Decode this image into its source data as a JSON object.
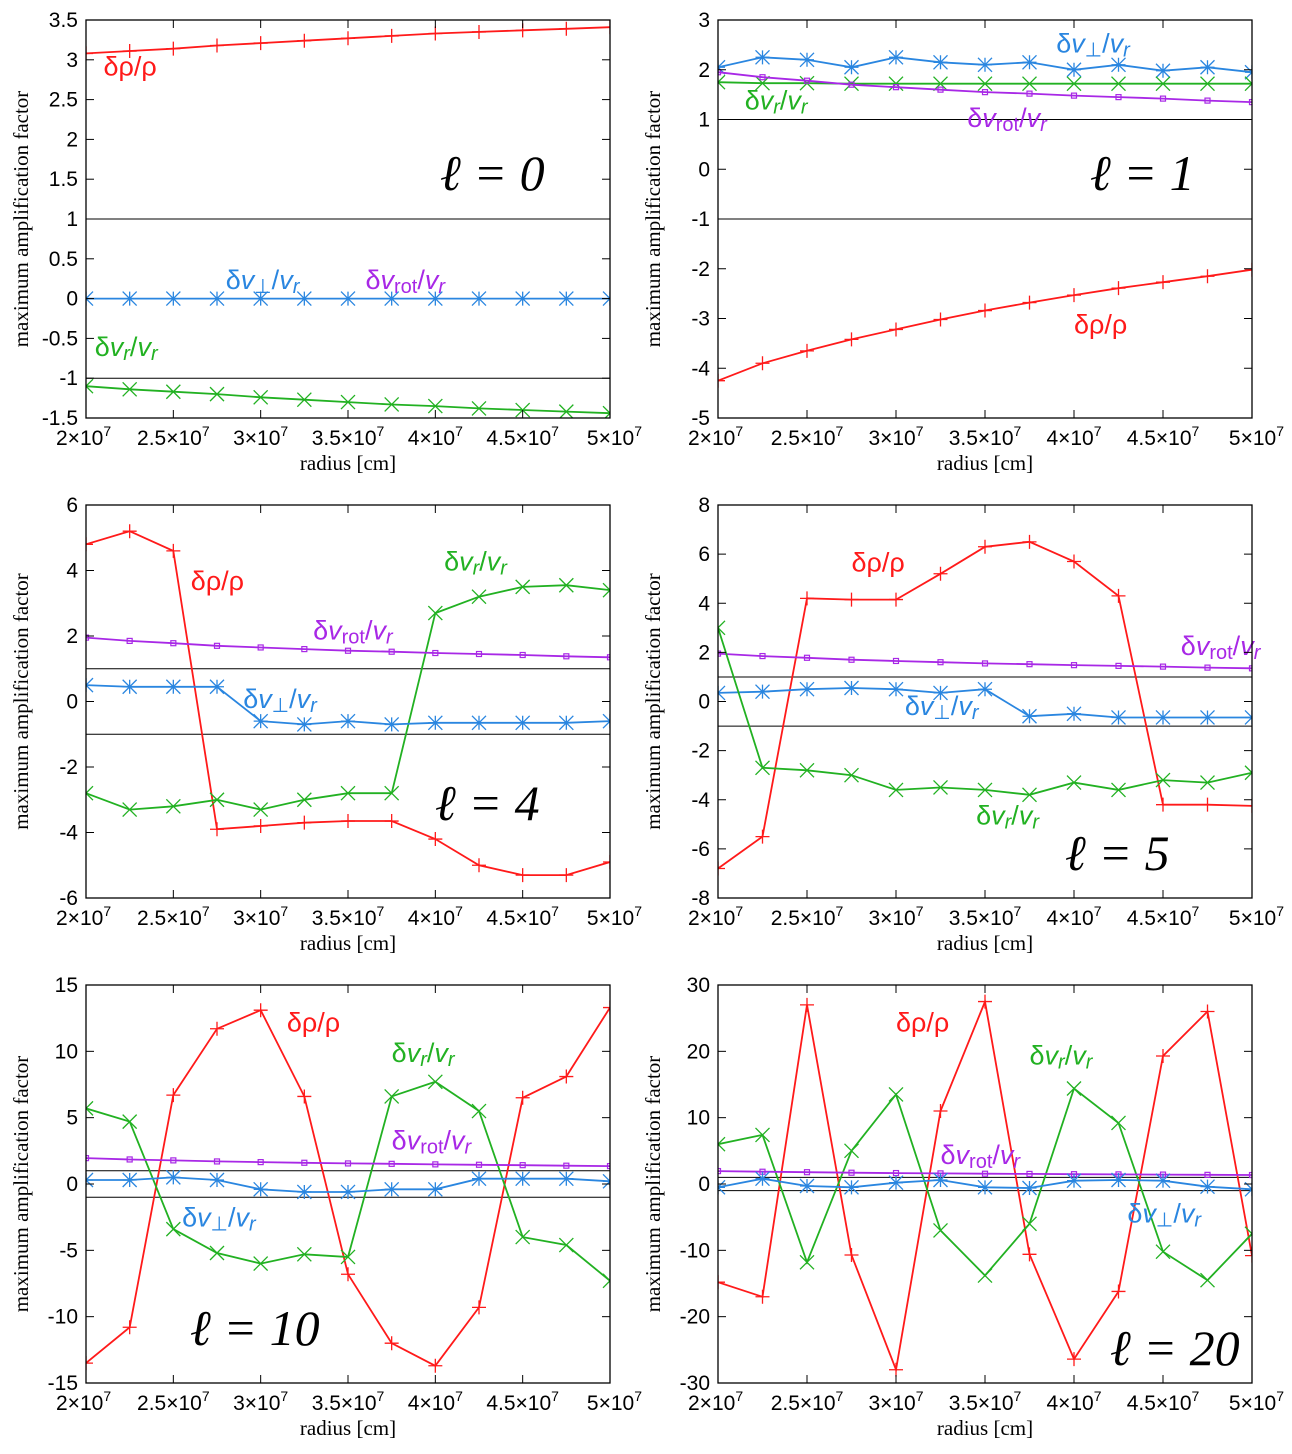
{
  "colors": {
    "drho": "#ff1a1a",
    "dvr": "#22b122",
    "dvperp": "#2a86e0",
    "dvrot": "#a828e6",
    "ref": "#000000"
  },
  "chart_data": [
    {
      "type": "line",
      "ell_label": "ℓ = 0",
      "xlabel": "radius [cm]",
      "ylabel": "maximum amplification factor",
      "xlim": [
        20000000.0,
        50000000.0
      ],
      "ylim": [
        -1.5,
        3.5
      ],
      "xticks": [
        20000000.0,
        25000000.0,
        30000000.0,
        35000000.0,
        40000000.0,
        45000000.0,
        50000000.0
      ],
      "xtick_labels": [
        "2×10",
        "2.5×10",
        "3×10",
        "3.5×10",
        "4×10",
        "4.5×10",
        "5×10"
      ],
      "xtick_exp": "7",
      "yticks": [
        -1.5,
        -1,
        -0.5,
        0,
        0.5,
        1,
        1.5,
        2,
        2.5,
        3,
        3.5
      ],
      "ytick_labels": [
        "-1.5",
        "-1",
        "-0.5",
        "0",
        "0.5",
        "1",
        "1.5",
        "2",
        "2.5",
        "3",
        "3.5"
      ],
      "reference_lines": [
        1,
        -1
      ],
      "x": [
        20000000.0,
        22500000.0,
        25000000.0,
        27500000.0,
        30000000.0,
        32500000.0,
        35000000.0,
        37500000.0,
        40000000.0,
        42500000.0,
        45000000.0,
        47500000.0,
        50000000.0
      ],
      "series": [
        {
          "name": "δρ/ρ",
          "marker": "plus",
          "label_pos": [
            21000000.0,
            2.8
          ],
          "values": [
            3.08,
            3.11,
            3.14,
            3.18,
            3.21,
            3.24,
            3.27,
            3.3,
            3.33,
            3.35,
            3.37,
            3.39,
            3.41
          ]
        },
        {
          "name": "δv_⊥/v_r",
          "marker": "star",
          "label_pos": [
            28000000.0,
            0.12
          ],
          "values": [
            0,
            0,
            0,
            0,
            0,
            0,
            0,
            0,
            0,
            0,
            0,
            0,
            0
          ]
        },
        {
          "name": "δv_rot/v_r",
          "marker": "square",
          "label_pos": [
            36000000.0,
            0.12
          ],
          "draw": false,
          "values": [
            0,
            0,
            0,
            0,
            0,
            0,
            0,
            0,
            0,
            0,
            0,
            0,
            0
          ]
        },
        {
          "name": "δv_r/v_r",
          "marker": "cross",
          "label_pos": [
            20500000.0,
            -0.72
          ],
          "values": [
            -1.1,
            -1.14,
            -1.17,
            -1.2,
            -1.24,
            -1.27,
            -1.3,
            -1.33,
            -1.35,
            -1.38,
            -1.4,
            -1.42,
            -1.44
          ]
        }
      ]
    },
    {
      "type": "line",
      "ell_label": "ℓ = 1",
      "xlabel": "radius [cm]",
      "ylabel": "maximum amplification factor",
      "xlim": [
        20000000.0,
        50000000.0
      ],
      "ylim": [
        -5,
        3
      ],
      "xticks": [
        20000000.0,
        25000000.0,
        30000000.0,
        35000000.0,
        40000000.0,
        45000000.0,
        50000000.0
      ],
      "xtick_labels": [
        "2×10",
        "2.5×10",
        "3×10",
        "3.5×10",
        "4×10",
        "4.5×10",
        "5×10"
      ],
      "xtick_exp": "7",
      "yticks": [
        -5,
        -4,
        -3,
        -2,
        -1,
        0,
        1,
        2,
        3
      ],
      "ytick_labels": [
        "-5",
        "-4",
        "-3",
        "-2",
        "-1",
        "0",
        "1",
        "2",
        "3"
      ],
      "reference_lines": [
        1,
        -1
      ],
      "x": [
        20000000.0,
        22500000.0,
        25000000.0,
        27500000.0,
        30000000.0,
        32500000.0,
        35000000.0,
        37500000.0,
        40000000.0,
        42500000.0,
        45000000.0,
        47500000.0,
        50000000.0
      ],
      "series": [
        {
          "name": "δv_⊥/v_r",
          "marker": "star",
          "label_pos": [
            39000000.0,
            2.35
          ],
          "values": [
            2.05,
            2.25,
            2.2,
            2.05,
            2.25,
            2.15,
            2.1,
            2.15,
            2.0,
            2.1,
            1.98,
            2.05,
            1.95
          ]
        },
        {
          "name": "δv_r/v_r",
          "marker": "cross",
          "label_pos": [
            21500000.0,
            1.2
          ],
          "values": [
            1.75,
            1.73,
            1.73,
            1.72,
            1.72,
            1.72,
            1.72,
            1.72,
            1.72,
            1.72,
            1.72,
            1.72,
            1.72
          ]
        },
        {
          "name": "δv_rot/v_r",
          "marker": "square",
          "label_pos": [
            34000000.0,
            0.85
          ],
          "values": [
            1.95,
            1.85,
            1.78,
            1.7,
            1.65,
            1.6,
            1.55,
            1.52,
            1.48,
            1.45,
            1.42,
            1.38,
            1.35
          ]
        },
        {
          "name": "δρ/ρ",
          "marker": "plus",
          "label_pos": [
            40000000.0,
            -3.3
          ],
          "values": [
            -4.25,
            -3.9,
            -3.65,
            -3.42,
            -3.22,
            -3.02,
            -2.84,
            -2.68,
            -2.53,
            -2.39,
            -2.27,
            -2.15,
            -2.02
          ]
        }
      ]
    },
    {
      "type": "line",
      "ell_label": "ℓ = 4",
      "xlabel": "radius [cm]",
      "ylabel": "maximum amplification factor",
      "xlim": [
        20000000.0,
        50000000.0
      ],
      "ylim": [
        -6,
        6
      ],
      "xticks": [
        20000000.0,
        25000000.0,
        30000000.0,
        35000000.0,
        40000000.0,
        45000000.0,
        50000000.0
      ],
      "xtick_labels": [
        "2×10",
        "2.5×10",
        "3×10",
        "3.5×10",
        "4×10",
        "4.5×10",
        "5×10"
      ],
      "xtick_exp": "7",
      "yticks": [
        -6,
        -4,
        -2,
        0,
        2,
        4,
        6
      ],
      "ytick_labels": [
        "-6",
        "-4",
        "-2",
        "0",
        "2",
        "4",
        "6"
      ],
      "reference_lines": [
        1,
        -1
      ],
      "x": [
        20000000.0,
        22500000.0,
        25000000.0,
        27500000.0,
        30000000.0,
        32500000.0,
        35000000.0,
        37500000.0,
        40000000.0,
        42500000.0,
        45000000.0,
        47500000.0,
        50000000.0
      ],
      "series": [
        {
          "name": "δρ/ρ",
          "marker": "plus",
          "label_pos": [
            26000000.0,
            3.4
          ],
          "values": [
            4.8,
            5.2,
            4.6,
            -3.9,
            -3.8,
            -3.7,
            -3.65,
            -3.65,
            -4.2,
            -5.0,
            -5.3,
            -5.3,
            -4.9
          ]
        },
        {
          "name": "δv_r/v_r",
          "marker": "cross",
          "label_pos": [
            40500000.0,
            4.0
          ],
          "values": [
            -2.8,
            -3.3,
            -3.2,
            -3.0,
            -3.3,
            -3.0,
            -2.8,
            -2.8,
            2.7,
            3.2,
            3.5,
            3.55,
            3.4
          ]
        },
        {
          "name": "δv_rot/v_r",
          "marker": "square",
          "label_pos": [
            33000000.0,
            1.9
          ],
          "values": [
            1.95,
            1.85,
            1.78,
            1.7,
            1.65,
            1.6,
            1.55,
            1.52,
            1.48,
            1.45,
            1.42,
            1.38,
            1.35
          ]
        },
        {
          "name": "δv_⊥/v_r",
          "marker": "star",
          "label_pos": [
            29000000.0,
            -0.2
          ],
          "values": [
            0.5,
            0.45,
            0.45,
            0.45,
            -0.6,
            -0.7,
            -0.6,
            -0.7,
            -0.65,
            -0.65,
            -0.65,
            -0.65,
            -0.6
          ]
        }
      ]
    },
    {
      "type": "line",
      "ell_label": "ℓ = 5",
      "xlabel": "radius [cm]",
      "ylabel": "maximum amplification factor",
      "xlim": [
        20000000.0,
        50000000.0
      ],
      "ylim": [
        -8,
        8
      ],
      "xticks": [
        20000000.0,
        25000000.0,
        30000000.0,
        35000000.0,
        40000000.0,
        45000000.0,
        50000000.0
      ],
      "xtick_labels": [
        "2×10",
        "2.5×10",
        "3×10",
        "3.5×10",
        "4×10",
        "4.5×10",
        "5×10"
      ],
      "xtick_exp": "7",
      "yticks": [
        -8,
        -6,
        -4,
        -2,
        0,
        2,
        4,
        6,
        8
      ],
      "ytick_labels": [
        "-8",
        "-6",
        "-4",
        "-2",
        "0",
        "2",
        "4",
        "6",
        "8"
      ],
      "reference_lines": [
        1,
        -1
      ],
      "x": [
        20000000.0,
        22500000.0,
        25000000.0,
        27500000.0,
        30000000.0,
        32500000.0,
        35000000.0,
        37500000.0,
        40000000.0,
        42500000.0,
        45000000.0,
        47500000.0,
        50000000.0
      ],
      "series": [
        {
          "name": "δρ/ρ",
          "marker": "plus",
          "label_pos": [
            27500000.0,
            5.3
          ],
          "values": [
            -6.8,
            -5.5,
            4.2,
            4.15,
            4.15,
            5.2,
            6.3,
            6.5,
            5.7,
            4.3,
            -4.2,
            -4.2,
            -4.25
          ]
        },
        {
          "name": "δv_rot/v_r",
          "marker": "square",
          "label_pos": [
            46000000.0,
            1.9
          ],
          "values": [
            1.95,
            1.85,
            1.78,
            1.7,
            1.65,
            1.6,
            1.55,
            1.52,
            1.48,
            1.45,
            1.42,
            1.38,
            1.35
          ]
        },
        {
          "name": "δv_⊥/v_r",
          "marker": "star",
          "label_pos": [
            30500000.0,
            -0.55
          ],
          "values": [
            0.35,
            0.4,
            0.5,
            0.55,
            0.5,
            0.35,
            0.5,
            -0.6,
            -0.5,
            -0.65,
            -0.65,
            -0.65,
            -0.65
          ]
        },
        {
          "name": "δv_r/v_r",
          "marker": "cross",
          "label_pos": [
            34500000.0,
            -5.0
          ],
          "values": [
            3.0,
            -2.7,
            -2.8,
            -3.0,
            -3.6,
            -3.5,
            -3.6,
            -3.8,
            -3.3,
            -3.6,
            -3.2,
            -3.3,
            -2.9
          ]
        }
      ]
    },
    {
      "type": "line",
      "ell_label": "ℓ = 10",
      "xlabel": "radius [cm]",
      "ylabel": "maximum amplification factor",
      "xlim": [
        20000000.0,
        50000000.0
      ],
      "ylim": [
        -15,
        15
      ],
      "xticks": [
        20000000.0,
        25000000.0,
        30000000.0,
        35000000.0,
        40000000.0,
        45000000.0,
        50000000.0
      ],
      "xtick_labels": [
        "2×10",
        "2.5×10",
        "3×10",
        "3.5×10",
        "4×10",
        "4.5×10",
        "5×10"
      ],
      "xtick_exp": "7",
      "yticks": [
        -15,
        -10,
        -5,
        0,
        5,
        10,
        15
      ],
      "ytick_labels": [
        "-15",
        "-10",
        "-5",
        "0",
        "5",
        "10",
        "15"
      ],
      "reference_lines": [
        1,
        -1
      ],
      "x": [
        20000000.0,
        22500000.0,
        25000000.0,
        27500000.0,
        30000000.0,
        32500000.0,
        35000000.0,
        37500000.0,
        40000000.0,
        42500000.0,
        45000000.0,
        47500000.0,
        50000000.0
      ],
      "series": [
        {
          "name": "δρ/ρ",
          "marker": "plus",
          "label_pos": [
            31500000.0,
            11.5
          ],
          "values": [
            -13.5,
            -10.8,
            6.7,
            11.7,
            13.1,
            6.6,
            -6.8,
            -12.0,
            -13.7,
            -9.3,
            6.5,
            8.1,
            13.3
          ]
        },
        {
          "name": "δv_r/v_r",
          "marker": "cross",
          "label_pos": [
            37500000.0,
            9.2
          ],
          "values": [
            5.7,
            4.7,
            -3.4,
            -5.2,
            -6.0,
            -5.3,
            -5.5,
            6.6,
            7.7,
            5.5,
            -4.0,
            -4.6,
            -7.3
          ]
        },
        {
          "name": "δv_rot/v_r",
          "marker": "square",
          "label_pos": [
            37500000.0,
            2.6
          ],
          "values": [
            1.95,
            1.85,
            1.78,
            1.7,
            1.65,
            1.6,
            1.55,
            1.52,
            1.48,
            1.45,
            1.42,
            1.38,
            1.35
          ]
        },
        {
          "name": "δv_⊥/v_r",
          "marker": "star",
          "label_pos": [
            25500000.0,
            -3.2
          ],
          "values": [
            0.3,
            0.3,
            0.5,
            0.3,
            -0.4,
            -0.6,
            -0.6,
            -0.4,
            -0.4,
            0.4,
            0.4,
            0.4,
            0.2
          ]
        }
      ]
    },
    {
      "type": "line",
      "ell_label": "ℓ = 20",
      "xlabel": "radius [cm]",
      "ylabel": "maximum amplification factor",
      "xlim": [
        20000000.0,
        50000000.0
      ],
      "ylim": [
        -30,
        30
      ],
      "xticks": [
        20000000.0,
        25000000.0,
        30000000.0,
        35000000.0,
        40000000.0,
        45000000.0,
        50000000.0
      ],
      "xtick_labels": [
        "2×10",
        "2.5×10",
        "3×10",
        "3.5×10",
        "4×10",
        "4.5×10",
        "5×10"
      ],
      "xtick_exp": "7",
      "yticks": [
        -30,
        -20,
        -10,
        0,
        10,
        20,
        30
      ],
      "ytick_labels": [
        "-30",
        "-20",
        "-10",
        "0",
        "10",
        "20",
        "30"
      ],
      "reference_lines": [
        1,
        -1
      ],
      "x": [
        20000000.0,
        22500000.0,
        25000000.0,
        27500000.0,
        30000000.0,
        32500000.0,
        35000000.0,
        37500000.0,
        40000000.0,
        42500000.0,
        45000000.0,
        47500000.0,
        50000000.0
      ],
      "series": [
        {
          "name": "δρ/ρ",
          "marker": "plus",
          "label_pos": [
            30000000.0,
            23.0
          ],
          "values": [
            -14.8,
            -17.0,
            27.0,
            -10.7,
            -28.0,
            11.0,
            27.5,
            -10.6,
            -26.4,
            -16.2,
            19.3,
            26.0,
            -10.8
          ]
        },
        {
          "name": "δv_r/v_r",
          "marker": "cross",
          "label_pos": [
            37500000.0,
            18.0
          ],
          "values": [
            6.0,
            7.4,
            -11.8,
            5.0,
            13.5,
            -7.0,
            -13.8,
            -6.0,
            14.4,
            9.2,
            -10.2,
            -14.5,
            -7.5
          ]
        },
        {
          "name": "δv_rot/v_r",
          "marker": "square",
          "label_pos": [
            32500000.0,
            3.0
          ],
          "values": [
            1.95,
            1.85,
            1.78,
            1.7,
            1.65,
            1.6,
            1.55,
            1.52,
            1.48,
            1.45,
            1.42,
            1.38,
            1.35
          ]
        },
        {
          "name": "δv_⊥/v_r",
          "marker": "star",
          "label_pos": [
            43000000.0,
            -5.8
          ],
          "values": [
            -0.5,
            0.8,
            -0.3,
            -0.5,
            0.2,
            0.6,
            -0.5,
            -0.6,
            0.5,
            0.6,
            0.5,
            -0.4,
            -0.8
          ]
        }
      ]
    }
  ]
}
